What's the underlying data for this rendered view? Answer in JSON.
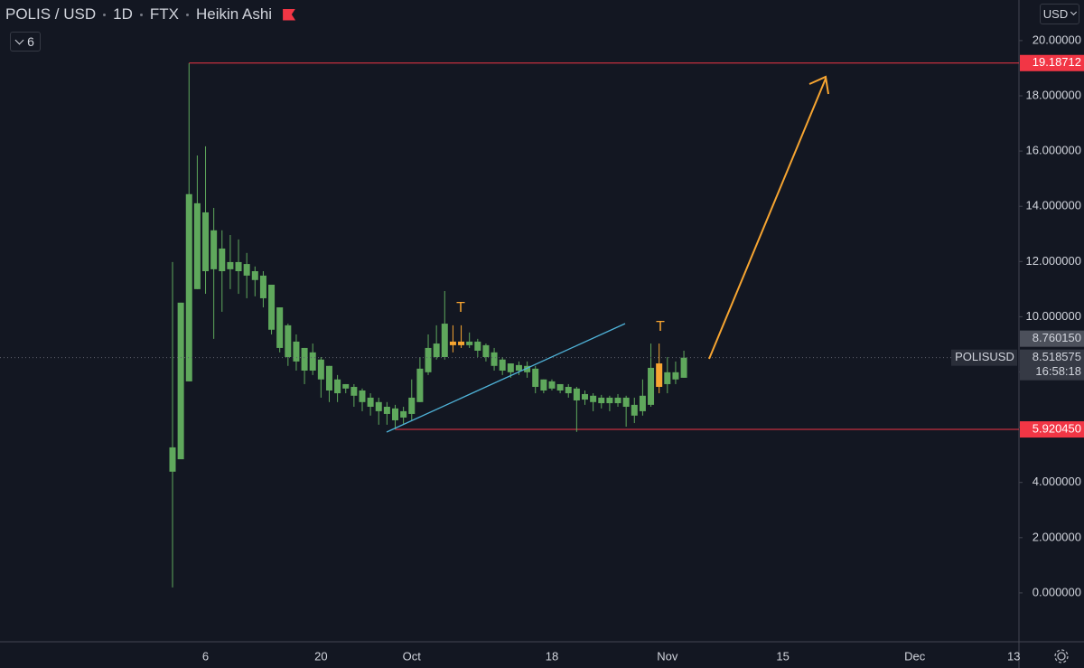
{
  "chart_data": {
    "type": "candlestick",
    "symbol": "POLIS / USD",
    "interval": "1D",
    "exchange": "FTX",
    "chart_style": "Heikin Ashi",
    "indicator_count": "6",
    "currency": "USD",
    "up_color": "#5fa85c",
    "down_color": "#f7a531",
    "grid": false,
    "categories": [
      null,
      null,
      null,
      null,
      "6",
      null,
      null,
      null,
      null,
      null,
      null,
      null,
      null,
      null,
      null,
      null,
      null,
      null,
      "20",
      null,
      null,
      null,
      null,
      null,
      null,
      null,
      null,
      null,
      null,
      "Oct",
      null,
      null,
      null,
      null,
      null,
      null,
      null,
      null,
      null,
      null,
      null,
      null,
      null,
      null,
      null,
      null,
      "18",
      null,
      null,
      null,
      null,
      null,
      null,
      null,
      null,
      null,
      null,
      null,
      null,
      null,
      "Nov",
      null,
      null,
      null,
      null,
      null,
      null,
      null,
      null,
      null,
      null,
      null,
      null,
      null,
      "15",
      null,
      null,
      null,
      null,
      null,
      null,
      null,
      null,
      null,
      null,
      null,
      null,
      null,
      null,
      null,
      "Dec",
      null,
      null,
      null,
      null,
      null,
      null,
      null,
      null,
      null,
      null,
      null,
      "13"
    ],
    "open": [
      4.39,
      4.84,
      7.66,
      11.0,
      11.65,
      11.72,
      11.65,
      11.72,
      11.65,
      11.49,
      11.33,
      10.67,
      9.53,
      8.87,
      8.54,
      8.38,
      8.05,
      8.05,
      7.73,
      7.33,
      7.23,
      7.4,
      7.14,
      6.91,
      6.74,
      6.58,
      6.48,
      6.25,
      6.35,
      6.48,
      6.91,
      7.99,
      8.54,
      8.54,
      9.1,
      9.1,
      8.97,
      8.77,
      8.54,
      8.22,
      8.05,
      7.99,
      8.05,
      7.99,
      7.46,
      7.33,
      7.4,
      7.33,
      7.23,
      6.97,
      7.0,
      6.91,
      6.87,
      6.87,
      6.87,
      6.74,
      6.42,
      6.58,
      6.81,
      8.31,
      7.56,
      7.73,
      7.79,
      null,
      null,
      null,
      null,
      null,
      null,
      null,
      null,
      null,
      null,
      null,
      null,
      null,
      null,
      null,
      null,
      null,
      null,
      null,
      null,
      null,
      null,
      null,
      null,
      null,
      null,
      null,
      null,
      null,
      null,
      null,
      null,
      null,
      null,
      null,
      null,
      null,
      null,
      null,
      null
    ],
    "high": [
      11.98,
      10.51,
      19.18,
      15.84,
      16.17,
      13.94,
      13.13,
      12.96,
      12.8,
      12.31,
      11.82,
      11.65,
      11.16,
      10.34,
      9.75,
      9.36,
      8.87,
      9.03,
      8.54,
      8.22,
      7.89,
      7.56,
      7.56,
      7.4,
      7.23,
      7.07,
      6.91,
      6.81,
      6.74,
      7.73,
      8.54,
      9.36,
      9.69,
      10.93,
      9.69,
      9.69,
      9.43,
      9.2,
      9.03,
      8.87,
      8.54,
      8.31,
      8.38,
      8.38,
      8.22,
      7.73,
      7.73,
      7.56,
      7.56,
      7.46,
      7.33,
      7.23,
      7.17,
      7.14,
      7.2,
      7.14,
      7.07,
      7.73,
      9.03,
      9.03,
      8.54,
      8.38,
      8.77,
      null,
      null,
      null,
      null,
      null,
      null,
      null,
      null,
      null,
      null,
      null,
      null,
      null,
      null,
      null,
      null,
      null,
      null,
      null,
      null,
      null,
      null,
      null,
      null,
      null,
      null,
      null,
      null,
      null,
      null,
      null,
      null,
      null,
      null,
      null,
      null,
      null,
      null,
      null,
      null
    ],
    "low": [
      0.2,
      4.84,
      7.66,
      11.0,
      10.83,
      9.2,
      10.18,
      11.0,
      10.83,
      10.67,
      10.74,
      10.34,
      9.36,
      8.71,
      8.22,
      8.05,
      7.56,
      7.89,
      7.07,
      6.91,
      6.91,
      7.23,
      6.74,
      6.58,
      6.42,
      6.09,
      6.09,
      5.92,
      6.09,
      6.25,
      6.91,
      7.89,
      8.45,
      8.45,
      8.71,
      8.87,
      8.87,
      8.54,
      8.38,
      8.05,
      7.89,
      7.79,
      7.89,
      7.79,
      7.23,
      7.23,
      7.33,
      7.23,
      7.07,
      5.83,
      6.81,
      6.58,
      6.68,
      6.58,
      6.74,
      6.02,
      6.15,
      6.42,
      6.74,
      7.23,
      7.23,
      7.56,
      7.79,
      null,
      null,
      null,
      null,
      null,
      null,
      null,
      null,
      null,
      null,
      null,
      null,
      null,
      null,
      null,
      null,
      null,
      null,
      null,
      null,
      null,
      null,
      null,
      null,
      null,
      null,
      null,
      null,
      null,
      null,
      null,
      null,
      null,
      null,
      null,
      null,
      null,
      null,
      null,
      null
    ],
    "close": [
      5.27,
      10.51,
      14.44,
      14.11,
      13.78,
      13.13,
      12.47,
      11.98,
      11.98,
      11.91,
      11.65,
      11.49,
      11.16,
      10.34,
      9.69,
      9.1,
      8.87,
      8.71,
      8.45,
      8.22,
      7.73,
      7.56,
      7.46,
      7.33,
      7.07,
      6.91,
      6.74,
      6.68,
      6.58,
      7.07,
      8.12,
      8.87,
      9.03,
      9.75,
      8.97,
      8.97,
      9.1,
      9.1,
      8.97,
      8.71,
      8.45,
      8.31,
      8.25,
      8.22,
      8.12,
      7.73,
      7.66,
      7.56,
      7.46,
      7.4,
      7.2,
      7.14,
      7.07,
      7.07,
      7.07,
      7.07,
      6.81,
      7.14,
      8.15,
      7.46,
      7.99,
      7.99,
      8.518575,
      null,
      null,
      null,
      null,
      null,
      null,
      null,
      null,
      null,
      null,
      null,
      null,
      null,
      null,
      null,
      null,
      null,
      null,
      null,
      null,
      null,
      null,
      null,
      null,
      null,
      null,
      null,
      null,
      null,
      null,
      null,
      null,
      null,
      null,
      null,
      null,
      null,
      null,
      null,
      null
    ],
    "ylim": [
      -1.77,
      21.47
    ],
    "yticks": [
      {
        "value": 0,
        "label": "0.000000"
      },
      {
        "value": 2,
        "label": "2.000000"
      },
      {
        "value": 4,
        "label": "4.000000"
      },
      {
        "value": 6,
        "label": "6.000000"
      },
      {
        "value": 8,
        "label": "8.000000"
      },
      {
        "value": 10,
        "label": "10.000000"
      },
      {
        "value": 12,
        "label": "12.000000"
      },
      {
        "value": 14,
        "label": "14.000000"
      },
      {
        "value": 16,
        "label": "16.000000"
      },
      {
        "value": 18,
        "label": "18.000000"
      },
      {
        "value": 20,
        "label": "20.00000"
      }
    ],
    "levels": [
      {
        "value": 19.18712,
        "label": "19.18712",
        "color": "#f23645"
      },
      {
        "value": 5.92045,
        "label": "5.920450",
        "color": "#f23645"
      }
    ],
    "price_line": {
      "symbol": "POLISUSD",
      "value": 8.518575,
      "label": "8.518575",
      "countdown": "16:58:18"
    },
    "prev_label": {
      "value": 8.76015,
      "label": "8.760150"
    },
    "annotations": [
      {
        "text": "T"
      },
      {
        "text": "T"
      }
    ]
  }
}
